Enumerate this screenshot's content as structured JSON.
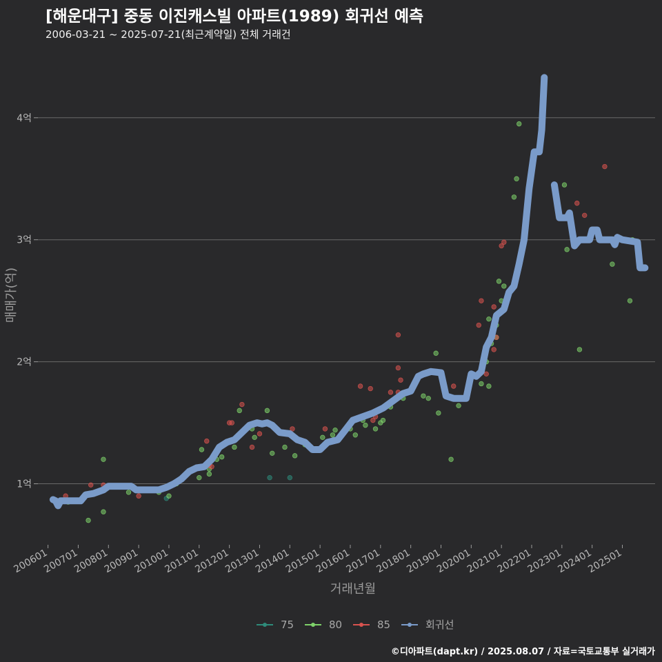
{
  "title": "[해운대구] 중동 이진캐스빌 아파트(1989) 회귀선 예측",
  "subtitle": "2006-03-21 ~ 2025-07-21(최근계약일) 전체 거래건",
  "credit": "©디아파트(dapt.kr) / 2025.08.07 / 자료=국토교통부 실거래가",
  "chart_data": {
    "type": "scatter",
    "xlabel": "거래년월",
    "ylabel": "매매가(억)",
    "x_tick_labels": [
      "200601",
      "200701",
      "200801",
      "200901",
      "201001",
      "201101",
      "201201",
      "201301",
      "201401",
      "201501",
      "201601",
      "201701",
      "201801",
      "201901",
      "202001",
      "202101",
      "202201",
      "202301",
      "202401",
      "202501"
    ],
    "y_ticks": [
      1,
      2,
      3,
      4
    ],
    "y_tick_labels": [
      "1억",
      "2억",
      "3억",
      "4억"
    ],
    "xlim": [
      "2005-09",
      "2026-02"
    ],
    "ylim": [
      0.5,
      4.4
    ],
    "grid": "horizontal",
    "legend_position": "bottom",
    "colors": {
      "75": "#2e8b7a",
      "80": "#7ed26a",
      "85": "#d9534f",
      "회귀선": "#7a9bc9"
    },
    "series": [
      {
        "name": "75",
        "type": "scatter",
        "points": [
          [
            "2006-05",
            0.82
          ],
          [
            "2009-12",
            0.88
          ],
          [
            "2013-05",
            1.05
          ],
          [
            "2014-01",
            1.05
          ]
        ]
      },
      {
        "name": "80",
        "type": "scatter",
        "points": [
          [
            "2006-04",
            0.86
          ],
          [
            "2006-09",
            0.85
          ],
          [
            "2007-05",
            0.7
          ],
          [
            "2007-11",
            1.2
          ],
          [
            "2007-11",
            0.77
          ],
          [
            "2008-04",
            0.98
          ],
          [
            "2008-09",
            0.93
          ],
          [
            "2009-09",
            0.93
          ],
          [
            "2010-01",
            0.9
          ],
          [
            "2010-04",
            1.0
          ],
          [
            "2010-09",
            1.1
          ],
          [
            "2011-01",
            1.05
          ],
          [
            "2011-02",
            1.28
          ],
          [
            "2011-05",
            1.08
          ],
          [
            "2011-05",
            1.12
          ],
          [
            "2011-08",
            1.2
          ],
          [
            "2011-10",
            1.22
          ],
          [
            "2012-03",
            1.3
          ],
          [
            "2012-05",
            1.6
          ],
          [
            "2012-10",
            1.45
          ],
          [
            "2012-11",
            1.38
          ],
          [
            "2013-03",
            1.5
          ],
          [
            "2013-04",
            1.6
          ],
          [
            "2013-06",
            1.25
          ],
          [
            "2013-11",
            1.3
          ],
          [
            "2014-03",
            1.23
          ],
          [
            "2014-07",
            1.32
          ],
          [
            "2015-02",
            1.38
          ],
          [
            "2015-05",
            1.35
          ],
          [
            "2015-06",
            1.4
          ],
          [
            "2015-07",
            1.44
          ],
          [
            "2015-10",
            1.42
          ],
          [
            "2016-01",
            1.45
          ],
          [
            "2016-03",
            1.4
          ],
          [
            "2016-06",
            1.52
          ],
          [
            "2016-07",
            1.48
          ],
          [
            "2016-10",
            1.58
          ],
          [
            "2016-11",
            1.45
          ],
          [
            "2017-01",
            1.5
          ],
          [
            "2017-02",
            1.52
          ],
          [
            "2017-05",
            1.63
          ],
          [
            "2017-10",
            1.7
          ],
          [
            "2018-06",
            1.72
          ],
          [
            "2018-08",
            1.7
          ],
          [
            "2018-11",
            2.07
          ],
          [
            "2018-12",
            1.58
          ],
          [
            "2019-05",
            1.2
          ],
          [
            "2019-08",
            1.64
          ],
          [
            "2020-05",
            1.82
          ],
          [
            "2020-07",
            2.0
          ],
          [
            "2020-08",
            2.35
          ],
          [
            "2020-08",
            1.8
          ],
          [
            "2020-09",
            2.15
          ],
          [
            "2020-11",
            2.2
          ],
          [
            "2020-11",
            2.3
          ],
          [
            "2020-12",
            2.66
          ],
          [
            "2021-01",
            2.5
          ],
          [
            "2021-02",
            2.62
          ],
          [
            "2021-06",
            3.35
          ],
          [
            "2021-07",
            3.5
          ],
          [
            "2021-08",
            3.95
          ],
          [
            "2023-02",
            3.45
          ],
          [
            "2023-03",
            2.92
          ],
          [
            "2023-08",
            2.1
          ],
          [
            "2024-09",
            2.8
          ],
          [
            "2025-05",
            3.0
          ],
          [
            "2025-04",
            2.5
          ]
        ]
      },
      {
        "name": "85",
        "type": "scatter",
        "points": [
          [
            "2006-08",
            0.9
          ],
          [
            "2007-06",
            0.99
          ],
          [
            "2007-11",
            0.99
          ],
          [
            "2009-01",
            0.9
          ],
          [
            "2011-04",
            1.35
          ],
          [
            "2011-05",
            1.15
          ],
          [
            "2011-06",
            1.14
          ],
          [
            "2012-01",
            1.5
          ],
          [
            "2012-02",
            1.5
          ],
          [
            "2012-06",
            1.65
          ],
          [
            "2012-10",
            1.3
          ],
          [
            "2013-01",
            1.41
          ],
          [
            "2014-01",
            1.4
          ],
          [
            "2014-02",
            1.45
          ],
          [
            "2015-03",
            1.45
          ],
          [
            "2016-05",
            1.8
          ],
          [
            "2016-09",
            1.78
          ],
          [
            "2016-10",
            1.52
          ],
          [
            "2016-11",
            1.55
          ],
          [
            "2017-05",
            1.75
          ],
          [
            "2017-08",
            2.22
          ],
          [
            "2017-08",
            1.75
          ],
          [
            "2017-08",
            1.95
          ],
          [
            "2017-09",
            1.85
          ],
          [
            "2019-06",
            1.8
          ],
          [
            "2020-04",
            2.3
          ],
          [
            "2020-05",
            2.5
          ],
          [
            "2020-07",
            1.9
          ],
          [
            "2020-10",
            2.45
          ],
          [
            "2020-10",
            2.1
          ],
          [
            "2020-11",
            2.2
          ],
          [
            "2021-01",
            2.95
          ],
          [
            "2021-02",
            2.98
          ],
          [
            "2023-07",
            3.3
          ],
          [
            "2023-10",
            3.2
          ],
          [
            "2024-06",
            3.6
          ]
        ]
      },
      {
        "name": "회귀선",
        "type": "line",
        "points": [
          [
            "2006-03",
            0.87
          ],
          [
            "2006-04",
            0.86
          ],
          [
            "2006-05",
            0.82
          ],
          [
            "2006-06",
            0.86
          ],
          [
            "2007-02",
            0.86
          ],
          [
            "2007-04",
            0.91
          ],
          [
            "2007-07",
            0.92
          ],
          [
            "2007-11",
            0.95
          ],
          [
            "2008-01",
            0.98
          ],
          [
            "2008-10",
            0.98
          ],
          [
            "2008-12",
            0.95
          ],
          [
            "2009-09",
            0.95
          ],
          [
            "2009-12",
            0.97
          ],
          [
            "2010-03",
            1.0
          ],
          [
            "2010-06",
            1.04
          ],
          [
            "2010-09",
            1.1
          ],
          [
            "2010-12",
            1.13
          ],
          [
            "2011-03",
            1.14
          ],
          [
            "2011-06",
            1.2
          ],
          [
            "2011-09",
            1.3
          ],
          [
            "2011-12",
            1.34
          ],
          [
            "2012-03",
            1.36
          ],
          [
            "2012-06",
            1.42
          ],
          [
            "2012-09",
            1.48
          ],
          [
            "2012-12",
            1.5
          ],
          [
            "2013-02",
            1.49
          ],
          [
            "2013-04",
            1.5
          ],
          [
            "2013-06",
            1.48
          ],
          [
            "2013-09",
            1.42
          ],
          [
            "2014-01",
            1.41
          ],
          [
            "2014-04",
            1.36
          ],
          [
            "2014-07",
            1.34
          ],
          [
            "2014-10",
            1.28
          ],
          [
            "2015-01",
            1.28
          ],
          [
            "2015-04",
            1.34
          ],
          [
            "2015-08",
            1.36
          ],
          [
            "2015-11",
            1.44
          ],
          [
            "2016-02",
            1.52
          ],
          [
            "2016-06",
            1.55
          ],
          [
            "2016-10",
            1.58
          ],
          [
            "2017-02",
            1.62
          ],
          [
            "2017-06",
            1.68
          ],
          [
            "2017-10",
            1.74
          ],
          [
            "2018-01",
            1.76
          ],
          [
            "2018-04",
            1.88
          ],
          [
            "2018-06",
            1.9
          ],
          [
            "2018-09",
            1.92
          ],
          [
            "2019-01",
            1.91
          ],
          [
            "2019-03",
            1.72
          ],
          [
            "2019-06",
            1.7
          ],
          [
            "2019-11",
            1.7
          ],
          [
            "2020-01",
            1.9
          ],
          [
            "2020-03",
            1.88
          ],
          [
            "2020-05",
            1.92
          ],
          [
            "2020-07",
            2.12
          ],
          [
            "2020-09",
            2.2
          ],
          [
            "2020-11",
            2.38
          ],
          [
            "2021-02",
            2.43
          ],
          [
            "2021-04",
            2.57
          ],
          [
            "2021-06",
            2.62
          ],
          [
            "2021-08",
            2.8
          ],
          [
            "2021-10",
            3.0
          ],
          [
            "2021-12",
            3.42
          ],
          [
            "2022-02",
            3.72
          ],
          [
            "2022-04",
            3.72
          ],
          [
            "2022-05",
            3.9
          ],
          [
            "2022-06",
            4.33
          ]
        ]
      },
      {
        "name": "회귀선",
        "type": "line",
        "points": [
          [
            "2022-10",
            3.45
          ],
          [
            "2022-12",
            3.18
          ],
          [
            "2023-03",
            3.18
          ],
          [
            "2023-04",
            3.22
          ],
          [
            "2023-06",
            2.95
          ],
          [
            "2023-08",
            3.0
          ],
          [
            "2023-12",
            3.0
          ],
          [
            "2024-01",
            3.08
          ],
          [
            "2024-03",
            3.08
          ],
          [
            "2024-04",
            3.0
          ],
          [
            "2024-09",
            3.0
          ],
          [
            "2024-10",
            2.96
          ],
          [
            "2024-11",
            3.02
          ],
          [
            "2025-01",
            3.0
          ],
          [
            "2025-07",
            2.98
          ],
          [
            "2025-08",
            2.77
          ],
          [
            "2025-10",
            2.77
          ]
        ]
      }
    ],
    "legend": [
      "75",
      "80",
      "85",
      "회귀선"
    ]
  }
}
